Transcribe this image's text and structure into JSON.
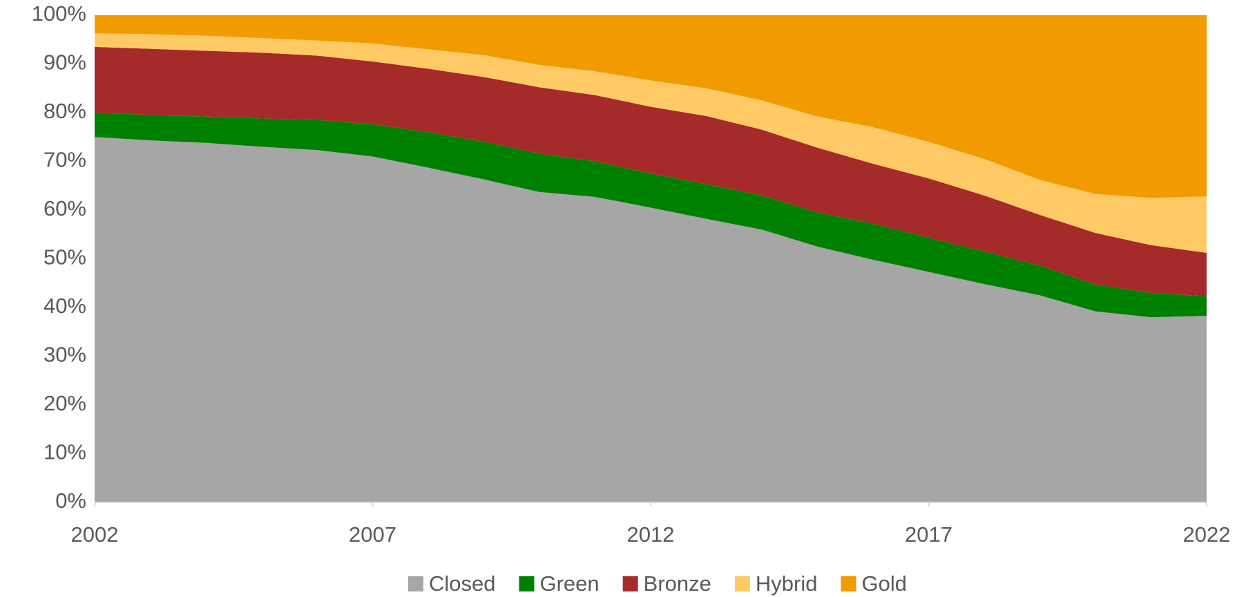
{
  "chart_data": {
    "type": "stacked_area",
    "x": [
      2002,
      2003,
      2004,
      2005,
      2006,
      2007,
      2008,
      2009,
      2010,
      2011,
      2012,
      2013,
      2014,
      2015,
      2016,
      2017,
      2018,
      2019,
      2020,
      2021,
      2022
    ],
    "series": [
      {
        "name": "Closed",
        "color": "#a6a6a6",
        "values": [
          75,
          74.3,
          73.8,
          73,
          72.3,
          71,
          68.7,
          66.3,
          63.7,
          62.7,
          60.5,
          58.2,
          56,
          52.5,
          49.8,
          47.3,
          44.8,
          42.5,
          39.2,
          38,
          38.3
        ]
      },
      {
        "name": "Green",
        "color": "#008000",
        "values": [
          5,
          5.2,
          5.4,
          5.8,
          6.2,
          6.6,
          7.3,
          7.7,
          7.9,
          7.3,
          7,
          7.1,
          7,
          7,
          7.4,
          7,
          6.7,
          6.1,
          5.5,
          5,
          4
        ]
      },
      {
        "name": "Bronze",
        "color": "#a52a2a",
        "values": [
          13.5,
          13.6,
          13.5,
          13.5,
          13.2,
          12.9,
          13,
          13.3,
          13.6,
          13.6,
          13.7,
          14,
          13.5,
          13.3,
          12.3,
          12.2,
          11.5,
          10.4,
          10.6,
          9.8,
          8.9
        ]
      },
      {
        "name": "Hybrid",
        "color": "#ffc966",
        "values": [
          2.8,
          3,
          3.1,
          3,
          3.1,
          3.7,
          4,
          4.5,
          4.6,
          4.9,
          5.4,
          5.7,
          6,
          6.4,
          7.5,
          7.5,
          7.5,
          7.2,
          8,
          9.7,
          11.6
        ]
      },
      {
        "name": "Gold",
        "color": "#f29b00",
        "values": [
          3.7,
          3.9,
          4.2,
          4.7,
          5.2,
          5.8,
          7,
          8.2,
          10.2,
          11.5,
          13.4,
          15,
          17.5,
          20.8,
          23,
          26,
          29.5,
          33.8,
          36.7,
          37.5,
          37.2
        ]
      }
    ],
    "xlim": [
      2002,
      2022
    ],
    "xticks": [
      2002,
      2007,
      2012,
      2017,
      2022
    ],
    "ylim": [
      0,
      100
    ],
    "yticks": [
      {
        "value": 0,
        "label": "0%"
      },
      {
        "value": 10,
        "label": "10%"
      },
      {
        "value": 20,
        "label": "20%"
      },
      {
        "value": 30,
        "label": "30%"
      },
      {
        "value": 40,
        "label": "40%"
      },
      {
        "value": 50,
        "label": "50%"
      },
      {
        "value": 60,
        "label": "60%"
      },
      {
        "value": 70,
        "label": "70%"
      },
      {
        "value": 80,
        "label": "80%"
      },
      {
        "value": 90,
        "label": "90%"
      },
      {
        "value": 100,
        "label": "100%"
      }
    ],
    "grid": false,
    "legend": "bottom"
  }
}
